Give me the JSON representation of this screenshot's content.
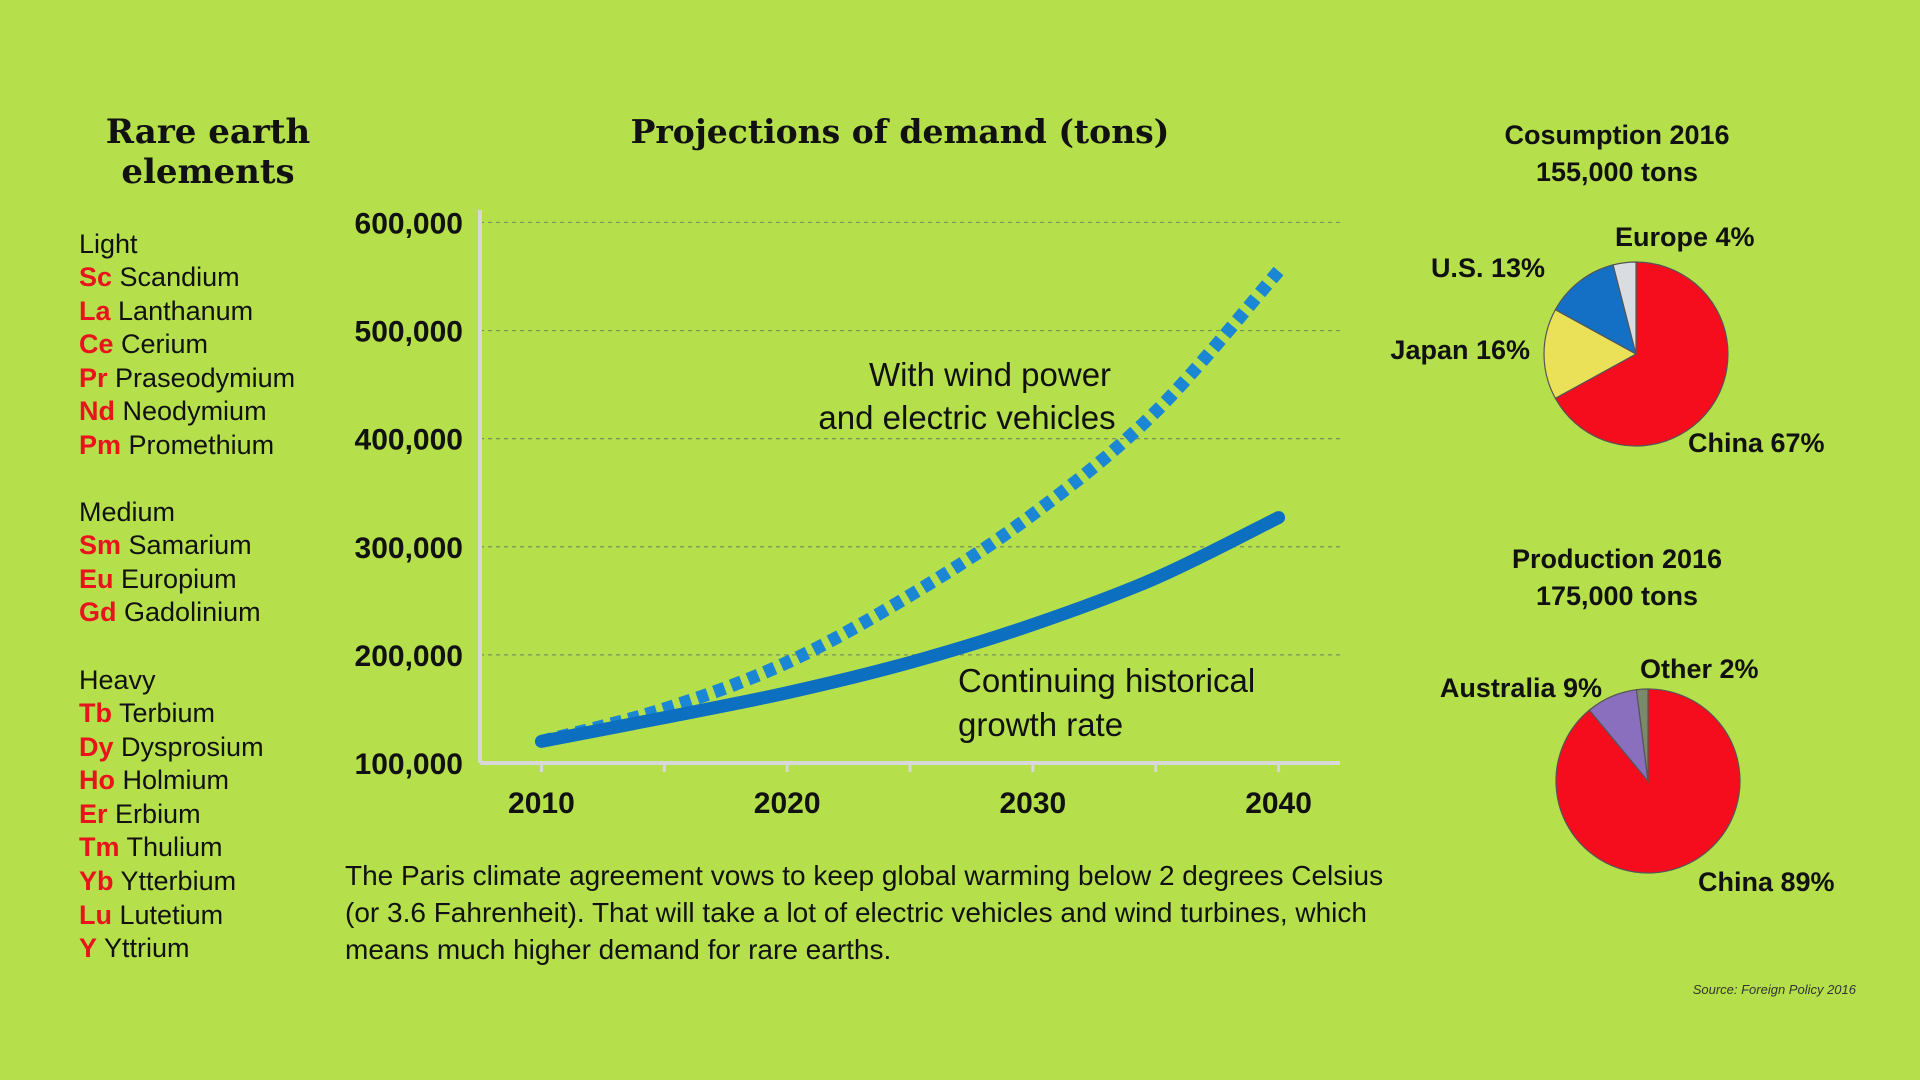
{
  "left": {
    "title_line1": "Rare earth",
    "title_line2": "elements",
    "groups": [
      {
        "name": "Light",
        "elements": [
          {
            "symbol": "Sc",
            "name": "Scandium"
          },
          {
            "symbol": "La",
            "name": "Lanthanum"
          },
          {
            "symbol": "Ce",
            "name": "Cerium"
          },
          {
            "symbol": "Pr",
            "name": "Praseodymium"
          },
          {
            "symbol": "Nd",
            "name": "Neodymium"
          },
          {
            "symbol": "Pm",
            "name": "Promethium"
          }
        ]
      },
      {
        "name": "Medium",
        "elements": [
          {
            "symbol": "Sm",
            "name": "Samarium"
          },
          {
            "symbol": "Eu",
            "name": "Europium"
          },
          {
            "symbol": "Gd",
            "name": "Gadolinium"
          }
        ]
      },
      {
        "name": "Heavy",
        "elements": [
          {
            "symbol": "Tb",
            "name": "Terbium"
          },
          {
            "symbol": "Dy",
            "name": "Dysprosium"
          },
          {
            "symbol": "Ho",
            "name": "Holmium"
          },
          {
            "symbol": "Er",
            "name": "Erbium"
          },
          {
            "symbol": "Tm",
            "name": "Thulium"
          },
          {
            "symbol": "Yb",
            "name": "Ytterbium"
          },
          {
            "symbol": "Lu",
            "name": "Lutetium"
          },
          {
            "symbol": "Y",
            "name": "Yttrium"
          }
        ]
      }
    ]
  },
  "caption": "The Paris climate agreement vows to keep global warming below 2 degrees Celsius (or 3.6 Fahrenheit). That will take a lot of electric vehicles and wind turbines, which means much higher demand for rare earths.",
  "source": "Source: Foreign Policy 2016",
  "colors": {
    "background": "#b5e04b",
    "line": "#0d6fc0",
    "dotted_line": "#1a86d4",
    "china": "#f50d1e",
    "japan": "#ebe158",
    "us": "#1470c4",
    "europe": "#d9dde2",
    "australia": "#8a6fbf",
    "other": "#7a8a6a",
    "symbol_red": "#e8131c"
  },
  "chart_data": [
    {
      "type": "line",
      "title": "Projections of demand (tons)",
      "xlabel": "",
      "ylabel": "",
      "x_ticks": [
        "2010",
        "2020",
        "2030",
        "2040"
      ],
      "y_ticks": [
        "100,000",
        "200,000",
        "300,000",
        "400,000",
        "500,000",
        "600,000"
      ],
      "xlim": [
        2007.5,
        2042.5
      ],
      "ylim": [
        100000,
        630000
      ],
      "grid": "dashed horizontal",
      "series": [
        {
          "name": "Continuing historical growth rate",
          "label_line1": "Continuing historical",
          "label_line2": "growth rate",
          "style": "solid",
          "x": [
            2010,
            2015,
            2020,
            2025,
            2030,
            2035,
            2040
          ],
          "y": [
            120000,
            142000,
            165000,
            193000,
            228000,
            271000,
            327000
          ]
        },
        {
          "name": "With wind power and electric vehicles",
          "label_line1": "With wind power",
          "label_line2": "and electric vehicles",
          "style": "dotted",
          "x": [
            2010,
            2015,
            2020,
            2025,
            2030,
            2035,
            2040
          ],
          "y": [
            120000,
            150000,
            193000,
            255000,
            330000,
            425000,
            555000
          ]
        }
      ]
    },
    {
      "type": "pie",
      "title_line1": "Cosumption 2016",
      "title_line2": "155,000 tons",
      "slices": [
        {
          "label": "China 67%",
          "value": 67,
          "color": "#f50d1e"
        },
        {
          "label": "Japan 16%",
          "value": 16,
          "color": "#ebe158"
        },
        {
          "label": "U.S. 13%",
          "value": 13,
          "color": "#1470c4"
        },
        {
          "label": "Europe 4%",
          "value": 4,
          "color": "#d9dde2"
        }
      ]
    },
    {
      "type": "pie",
      "title_line1": "Production 2016",
      "title_line2": "175,000 tons",
      "slices": [
        {
          "label": "China 89%",
          "value": 89,
          "color": "#f50d1e"
        },
        {
          "label": "Australia 9%",
          "value": 9,
          "color": "#8a6fbf"
        },
        {
          "label": "Other 2%",
          "value": 2,
          "color": "#7a8a6a"
        }
      ]
    }
  ]
}
